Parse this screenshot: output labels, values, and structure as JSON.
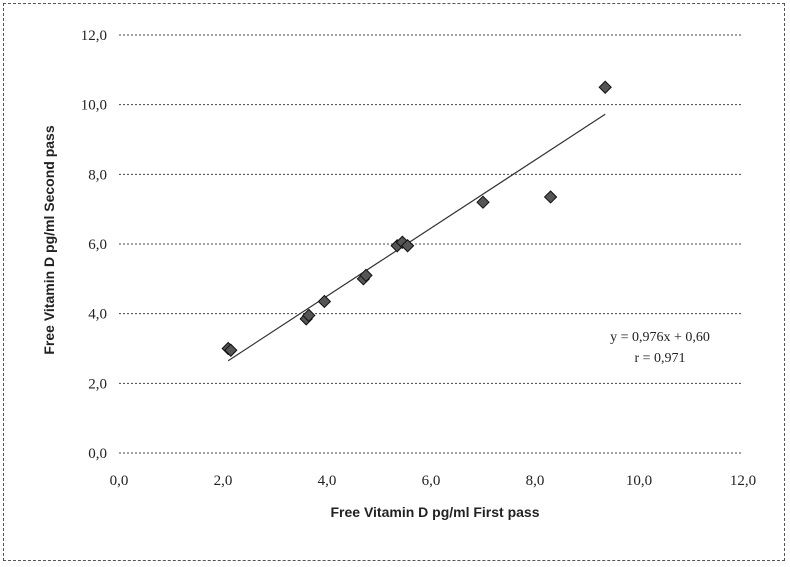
{
  "chart_data": {
    "type": "scatter",
    "title": "",
    "xlabel": "Free Vitamin D pg/ml First pass",
    "ylabel": "Free Vitamin D pg/ml Second pass",
    "xlim": [
      0,
      12
    ],
    "ylim": [
      0,
      12
    ],
    "x_ticks": [
      "0,0",
      "2,0",
      "4,0",
      "6,0",
      "8,0",
      "10,0",
      "12,0"
    ],
    "y_ticks": [
      "0,0",
      "2,0",
      "4,0",
      "6,0",
      "8,0",
      "10,0",
      "12,0"
    ],
    "grid": "horizontal",
    "series": [
      {
        "points": [
          {
            "x": 2.1,
            "y": 3.0
          },
          {
            "x": 2.15,
            "y": 2.95
          },
          {
            "x": 3.6,
            "y": 3.85
          },
          {
            "x": 3.65,
            "y": 3.95
          },
          {
            "x": 3.95,
            "y": 4.35
          },
          {
            "x": 4.7,
            "y": 5.0
          },
          {
            "x": 4.75,
            "y": 5.1
          },
          {
            "x": 5.35,
            "y": 5.95
          },
          {
            "x": 5.45,
            "y": 6.05
          },
          {
            "x": 5.55,
            "y": 5.95
          },
          {
            "x": 7.0,
            "y": 7.2
          },
          {
            "x": 8.3,
            "y": 7.35
          },
          {
            "x": 9.35,
            "y": 10.5
          }
        ]
      }
    ],
    "trendline": {
      "slope": 0.976,
      "intercept": 0.6,
      "x_range": [
        2.1,
        9.35
      ]
    },
    "annotation": {
      "equation": "y = 0,976x + 0,60",
      "r_value": "r = 0,971"
    }
  }
}
